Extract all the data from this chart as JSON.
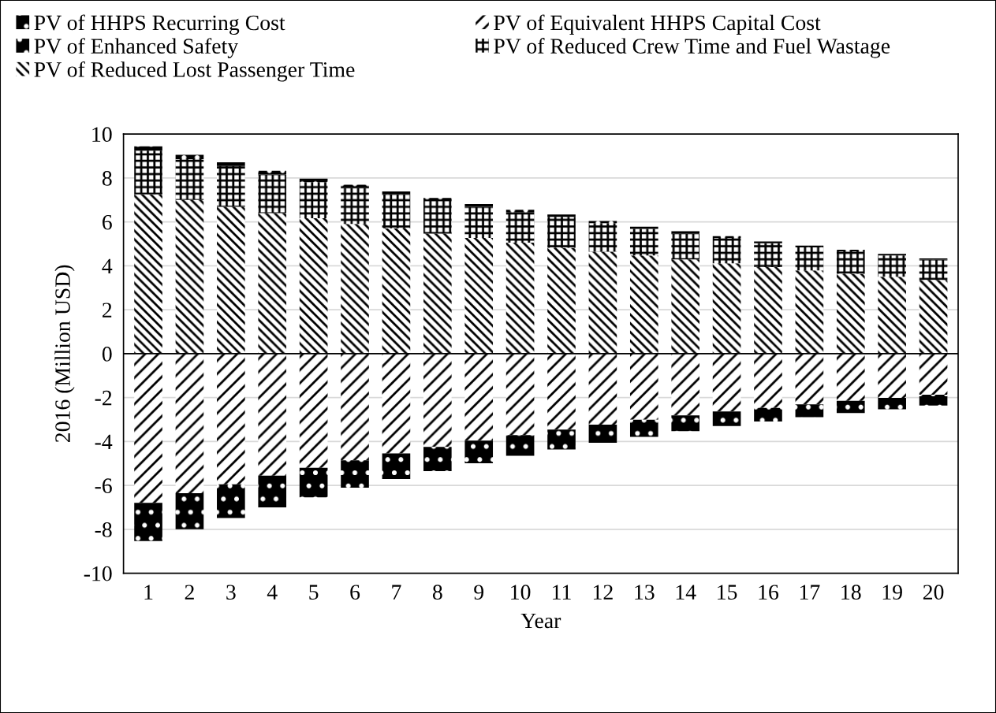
{
  "chart_data": {
    "type": "bar",
    "stacked": true,
    "xlabel": "Year",
    "ylabel": "2016 (Million USD)",
    "categories": [
      "1",
      "2",
      "3",
      "4",
      "5",
      "6",
      "7",
      "8",
      "9",
      "10",
      "11",
      "12",
      "13",
      "14",
      "15",
      "16",
      "17",
      "18",
      "19",
      "20"
    ],
    "series": [
      {
        "name": "PV of Reduced Lost Passenger Time",
        "color": "#000000",
        "values": [
          7.25,
          7.0,
          6.69,
          6.4,
          6.17,
          5.91,
          5.71,
          5.47,
          5.27,
          5.05,
          4.82,
          4.64,
          4.47,
          4.29,
          4.11,
          3.94,
          3.79,
          3.64,
          3.5,
          3.36
        ]
      },
      {
        "name": "PV of Reduced Crew Time and Fuel Wastage",
        "color": "#000000",
        "values": [
          1.99,
          1.86,
          1.85,
          1.76,
          1.64,
          1.63,
          1.54,
          1.49,
          1.42,
          1.38,
          1.41,
          1.3,
          1.21,
          1.19,
          1.16,
          1.09,
          1.05,
          1.02,
          0.97,
          0.92
        ]
      },
      {
        "name": "PV of Enhanced Safety",
        "color": "#000000",
        "values": [
          0.2,
          0.19,
          0.17,
          0.17,
          0.16,
          0.15,
          0.14,
          0.13,
          0.12,
          0.12,
          0.11,
          0.1,
          0.1,
          0.09,
          0.08,
          0.08,
          0.08,
          0.07,
          0.07,
          0.06
        ]
      },
      {
        "name": "PV of Equivalent HHPS Capital Cost",
        "color": "#000000",
        "values": [
          -6.79,
          -6.35,
          -5.95,
          -5.56,
          -5.2,
          -4.86,
          -4.54,
          -4.25,
          -3.96,
          -3.71,
          -3.46,
          -3.23,
          -3.01,
          -2.81,
          -2.63,
          -2.47,
          -2.31,
          -2.15,
          -2.01,
          -1.87
        ]
      },
      {
        "name": "PV of HHPS Recurring Cost",
        "color": "#000000",
        "values": [
          -1.74,
          -1.65,
          -1.53,
          -1.44,
          -1.34,
          -1.24,
          -1.17,
          -1.1,
          -1.03,
          -0.94,
          -0.9,
          -0.83,
          -0.78,
          -0.72,
          -0.67,
          -0.62,
          -0.58,
          -0.55,
          -0.52,
          -0.49
        ]
      }
    ],
    "ylim": [
      -10,
      10
    ],
    "yticks": [
      -10,
      -8,
      -6,
      -4,
      -2,
      0,
      2,
      4,
      6,
      8,
      10
    ],
    "grid": "y",
    "legend": "top"
  }
}
